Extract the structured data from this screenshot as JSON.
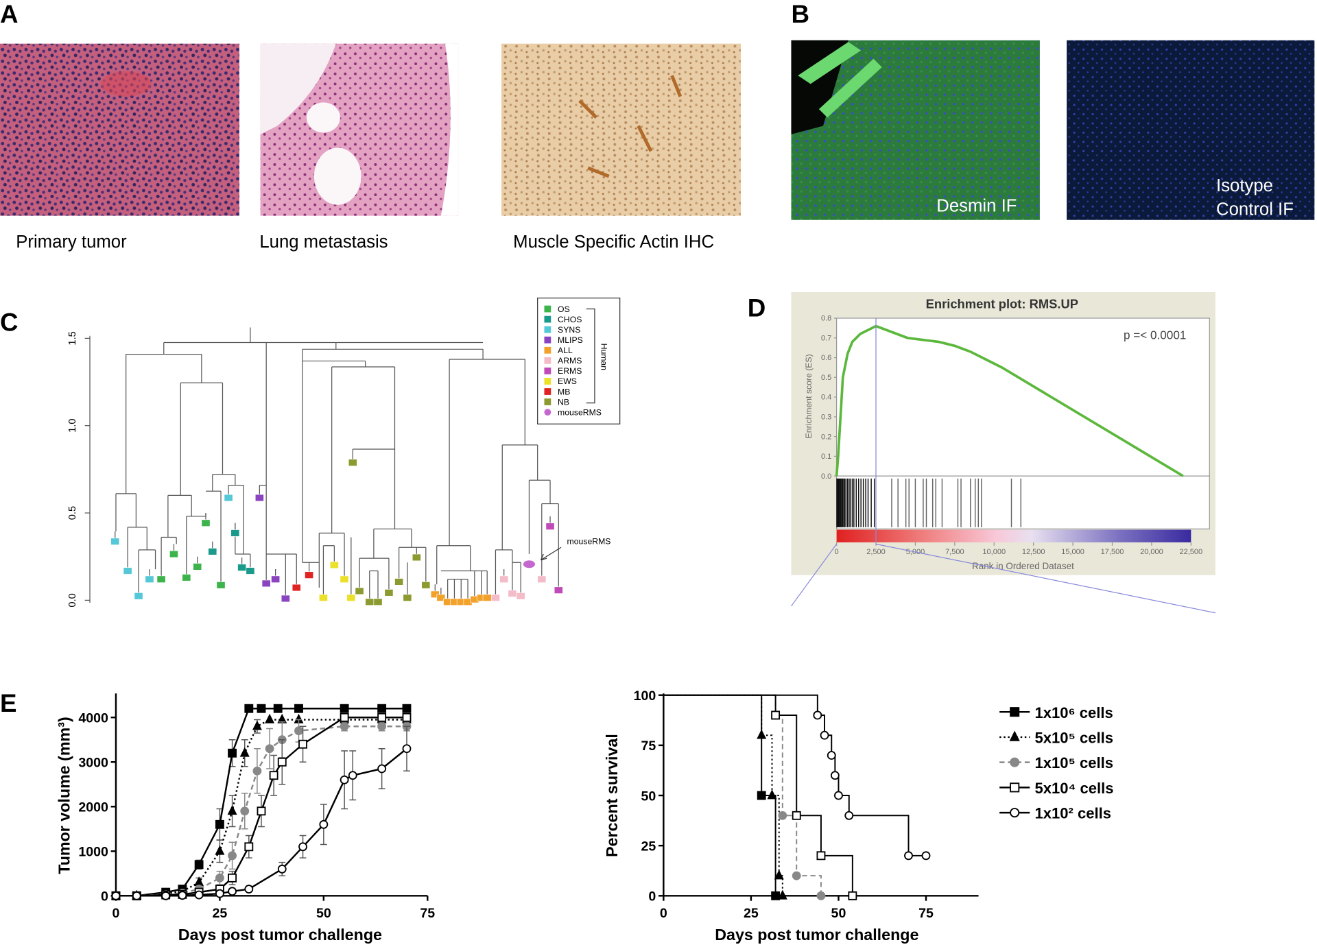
{
  "panel_labels": [
    "A",
    "B",
    "C",
    "D",
    "E"
  ],
  "panel_a": {
    "captions": [
      "Primary tumor",
      "Lung metastasis",
      "Muscle Specific Actin IHC"
    ]
  },
  "panel_b": {
    "captions": [
      "Desmin  IF",
      "Isotype",
      "Control  IF"
    ]
  },
  "chart_data": [
    {
      "type": "dendrogram",
      "ylim": [
        0,
        1.5
      ],
      "yticks": [
        {
          "value": 0,
          "label": "0.0"
        },
        {
          "value": 0.5,
          "label": "0.5"
        },
        {
          "value": 1,
          "label": "1.0"
        },
        {
          "value": 1.5,
          "label": "1.5"
        }
      ],
      "legend": [
        {
          "name": "OS",
          "color": "#3cb44b"
        },
        {
          "name": "CHOS",
          "color": "#1a9a8a"
        },
        {
          "name": "SYNS",
          "color": "#55c8d8"
        },
        {
          "name": "MLIPS",
          "color": "#8a44c0"
        },
        {
          "name": "ALL",
          "color": "#f2a22a"
        },
        {
          "name": "ARMS",
          "color": "#f4bcc8"
        },
        {
          "name": "ERMS",
          "color": "#c04ab8"
        },
        {
          "name": "EWS",
          "color": "#ece12a"
        },
        {
          "name": "MB",
          "color": "#e02424"
        },
        {
          "name": "NB",
          "color": "#8c9a30"
        },
        {
          "name": "mouseRMS",
          "color": "#c468d0",
          "marker": "circle"
        }
      ],
      "legend_group": "Human",
      "annotation": "mouseRMS"
    },
    {
      "type": "line",
      "title": "Enrichment plot: RMS.UP",
      "annotation": "p =< 0.0001",
      "y_label": "Enrichment score (ES)",
      "x_label": "Rank in Ordered Dataset",
      "x": [
        0,
        100,
        250,
        400,
        700,
        1000,
        1500,
        2000,
        2500,
        3500,
        4500,
        5500,
        6500,
        7500,
        8500,
        9500,
        10500,
        22000
      ],
      "values": [
        0,
        0.1,
        0.3,
        0.5,
        0.62,
        0.68,
        0.72,
        0.74,
        0.76,
        0.73,
        0.7,
        0.69,
        0.68,
        0.66,
        0.63,
        0.59,
        0.55,
        0
      ],
      "color": "#5cb83c",
      "xlim": [
        0,
        22500
      ],
      "ylim": [
        0,
        0.8
      ],
      "xticks": [
        0,
        {
          "value": 2500,
          "label": "2,500"
        },
        {
          "value": 5000,
          "label": "5,000"
        },
        {
          "value": 7500,
          "label": "7,500"
        },
        {
          "value": 10000,
          "label": "10,000"
        },
        {
          "value": 12500,
          "label": "12,500"
        },
        {
          "value": 15000,
          "label": "15,000"
        },
        {
          "value": 17500,
          "label": "17,500"
        },
        {
          "value": 20000,
          "label": "20,000"
        },
        {
          "value": 22500,
          "label": "22,500"
        }
      ],
      "yticks": [
        {
          "value": 0,
          "label": "0.0"
        },
        {
          "value": 0.1,
          "label": "0.1"
        },
        {
          "value": 0.2,
          "label": "0.2"
        },
        {
          "value": 0.3,
          "label": "0.3"
        },
        {
          "value": 0.4,
          "label": "0.4"
        },
        {
          "value": 0.5,
          "label": "0.5"
        },
        {
          "value": 0.6,
          "label": "0.6"
        },
        {
          "value": 0.7,
          "label": "0.7"
        },
        {
          "value": 0.8,
          "label": "0.8"
        }
      ],
      "hits": [
        20,
        60,
        100,
        150,
        200,
        260,
        320,
        380,
        450,
        520,
        600,
        700,
        800,
        900,
        1000,
        1100,
        1250,
        1400,
        1550,
        1700,
        1850,
        2000,
        2200,
        2400,
        3500,
        3900,
        4400,
        4600,
        5000,
        5500,
        5700,
        6100,
        6300,
        6700,
        7700,
        7900,
        8500,
        8800,
        9000,
        9200,
        11100,
        11700
      ]
    },
    {
      "type": "line",
      "x_label": "Days post tumor challenge",
      "y_label": "Tumor volume (mm³)",
      "xlim": [
        0,
        75
      ],
      "ylim": [
        0,
        4500
      ],
      "xticks": [
        0,
        25,
        50,
        75
      ],
      "yticks": [
        0,
        1000,
        2000,
        3000,
        4000
      ],
      "series": [
        {
          "name": "1x10⁶ cells",
          "color": "#000000",
          "marker": "square",
          "filled": true,
          "dash": "solid",
          "x": [
            0,
            5,
            12,
            16,
            20,
            25,
            28,
            32,
            35,
            39,
            44,
            55,
            64,
            70
          ],
          "values": [
            0,
            0,
            80,
            150,
            700,
            1600,
            3200,
            4200,
            4200,
            4200,
            4200,
            4200,
            4200,
            4200
          ],
          "errors": [
            null,
            null,
            null,
            null,
            100,
            350,
            300,
            null,
            null,
            null,
            null,
            null,
            null,
            null
          ]
        },
        {
          "name": "5x10⁵ cells",
          "color": "#000000",
          "marker": "triangle",
          "filled": true,
          "dash": "dotted",
          "x": [
            0,
            5,
            12,
            16,
            20,
            25,
            28,
            31,
            34,
            37,
            40,
            44,
            55,
            64,
            70
          ],
          "values": [
            0,
            0,
            50,
            100,
            300,
            1000,
            1900,
            3200,
            3800,
            3950,
            3950,
            3950,
            3950,
            3950,
            3950
          ],
          "errors": [
            null,
            null,
            null,
            null,
            100,
            250,
            350,
            300,
            150,
            null,
            null,
            null,
            null,
            null,
            null
          ]
        },
        {
          "name": "1x10⁵ cells",
          "color": "#888888",
          "marker": "circle",
          "filled": true,
          "dash": "dashed",
          "x": [
            0,
            5,
            12,
            16,
            20,
            25,
            28,
            31,
            34,
            37,
            40,
            44,
            55,
            64,
            70
          ],
          "values": [
            0,
            0,
            30,
            60,
            150,
            400,
            900,
            1900,
            2800,
            3300,
            3500,
            3700,
            3800,
            3800,
            3800
          ],
          "errors": [
            null,
            null,
            null,
            null,
            null,
            150,
            300,
            400,
            500,
            450,
            400,
            250,
            100,
            100,
            100
          ]
        },
        {
          "name": "5x10⁴ cells",
          "color": "#000000",
          "marker": "square",
          "filled": false,
          "dash": "solid",
          "x": [
            0,
            5,
            12,
            16,
            20,
            25,
            28,
            32,
            35,
            38,
            40,
            45,
            55,
            64,
            70
          ],
          "values": [
            0,
            0,
            20,
            30,
            80,
            150,
            400,
            1100,
            1900,
            2700,
            3000,
            3400,
            4000,
            4000,
            4000
          ],
          "errors": [
            null,
            null,
            null,
            null,
            null,
            null,
            150,
            250,
            350,
            450,
            500,
            400,
            100,
            100,
            100
          ]
        },
        {
          "name": "1x10² cells",
          "color": "#000000",
          "marker": "circle",
          "filled": false,
          "dash": "solid",
          "x": [
            0,
            5,
            12,
            16,
            20,
            25,
            28,
            32,
            40,
            45,
            50,
            55,
            57,
            64,
            70
          ],
          "values": [
            0,
            0,
            0,
            10,
            20,
            50,
            100,
            150,
            600,
            1100,
            1600,
            2600,
            2700,
            2850,
            3300
          ],
          "errors": [
            null,
            null,
            null,
            null,
            null,
            null,
            null,
            null,
            150,
            250,
            450,
            650,
            550,
            450,
            500
          ]
        }
      ]
    },
    {
      "type": "step",
      "x_label": "Days post tumor challenge",
      "y_label": "Percent survival",
      "xlim": [
        0,
        90
      ],
      "ylim": [
        0,
        100
      ],
      "xticks": [
        0,
        25,
        50,
        75
      ],
      "yticks": [
        0,
        25,
        50,
        75,
        100
      ],
      "series": [
        {
          "color": "#000000",
          "marker": "square",
          "filled": true,
          "dash": "solid",
          "x": [
            0,
            28,
            32
          ],
          "values": [
            100,
            50,
            0
          ]
        },
        {
          "color": "#000000",
          "marker": "triangle",
          "filled": true,
          "dash": "dotted",
          "x": [
            0,
            28,
            31,
            33,
            34
          ],
          "values": [
            100,
            80,
            50,
            10,
            0
          ]
        },
        {
          "color": "#888888",
          "marker": "circle",
          "filled": true,
          "dash": "dashed",
          "x": [
            0,
            32,
            34,
            38,
            45
          ],
          "values": [
            100,
            90,
            40,
            10,
            0
          ]
        },
        {
          "color": "#000000",
          "marker": "square",
          "filled": false,
          "dash": "solid",
          "x": [
            0,
            32,
            38,
            45,
            54
          ],
          "values": [
            100,
            90,
            40,
            20,
            0
          ]
        },
        {
          "color": "#000000",
          "marker": "circle",
          "filled": false,
          "dash": "solid",
          "x": [
            0,
            44,
            46,
            48,
            49,
            50,
            53,
            70,
            75
          ],
          "values": [
            100,
            90,
            80,
            70,
            60,
            50,
            40,
            20,
            20
          ]
        }
      ]
    }
  ]
}
